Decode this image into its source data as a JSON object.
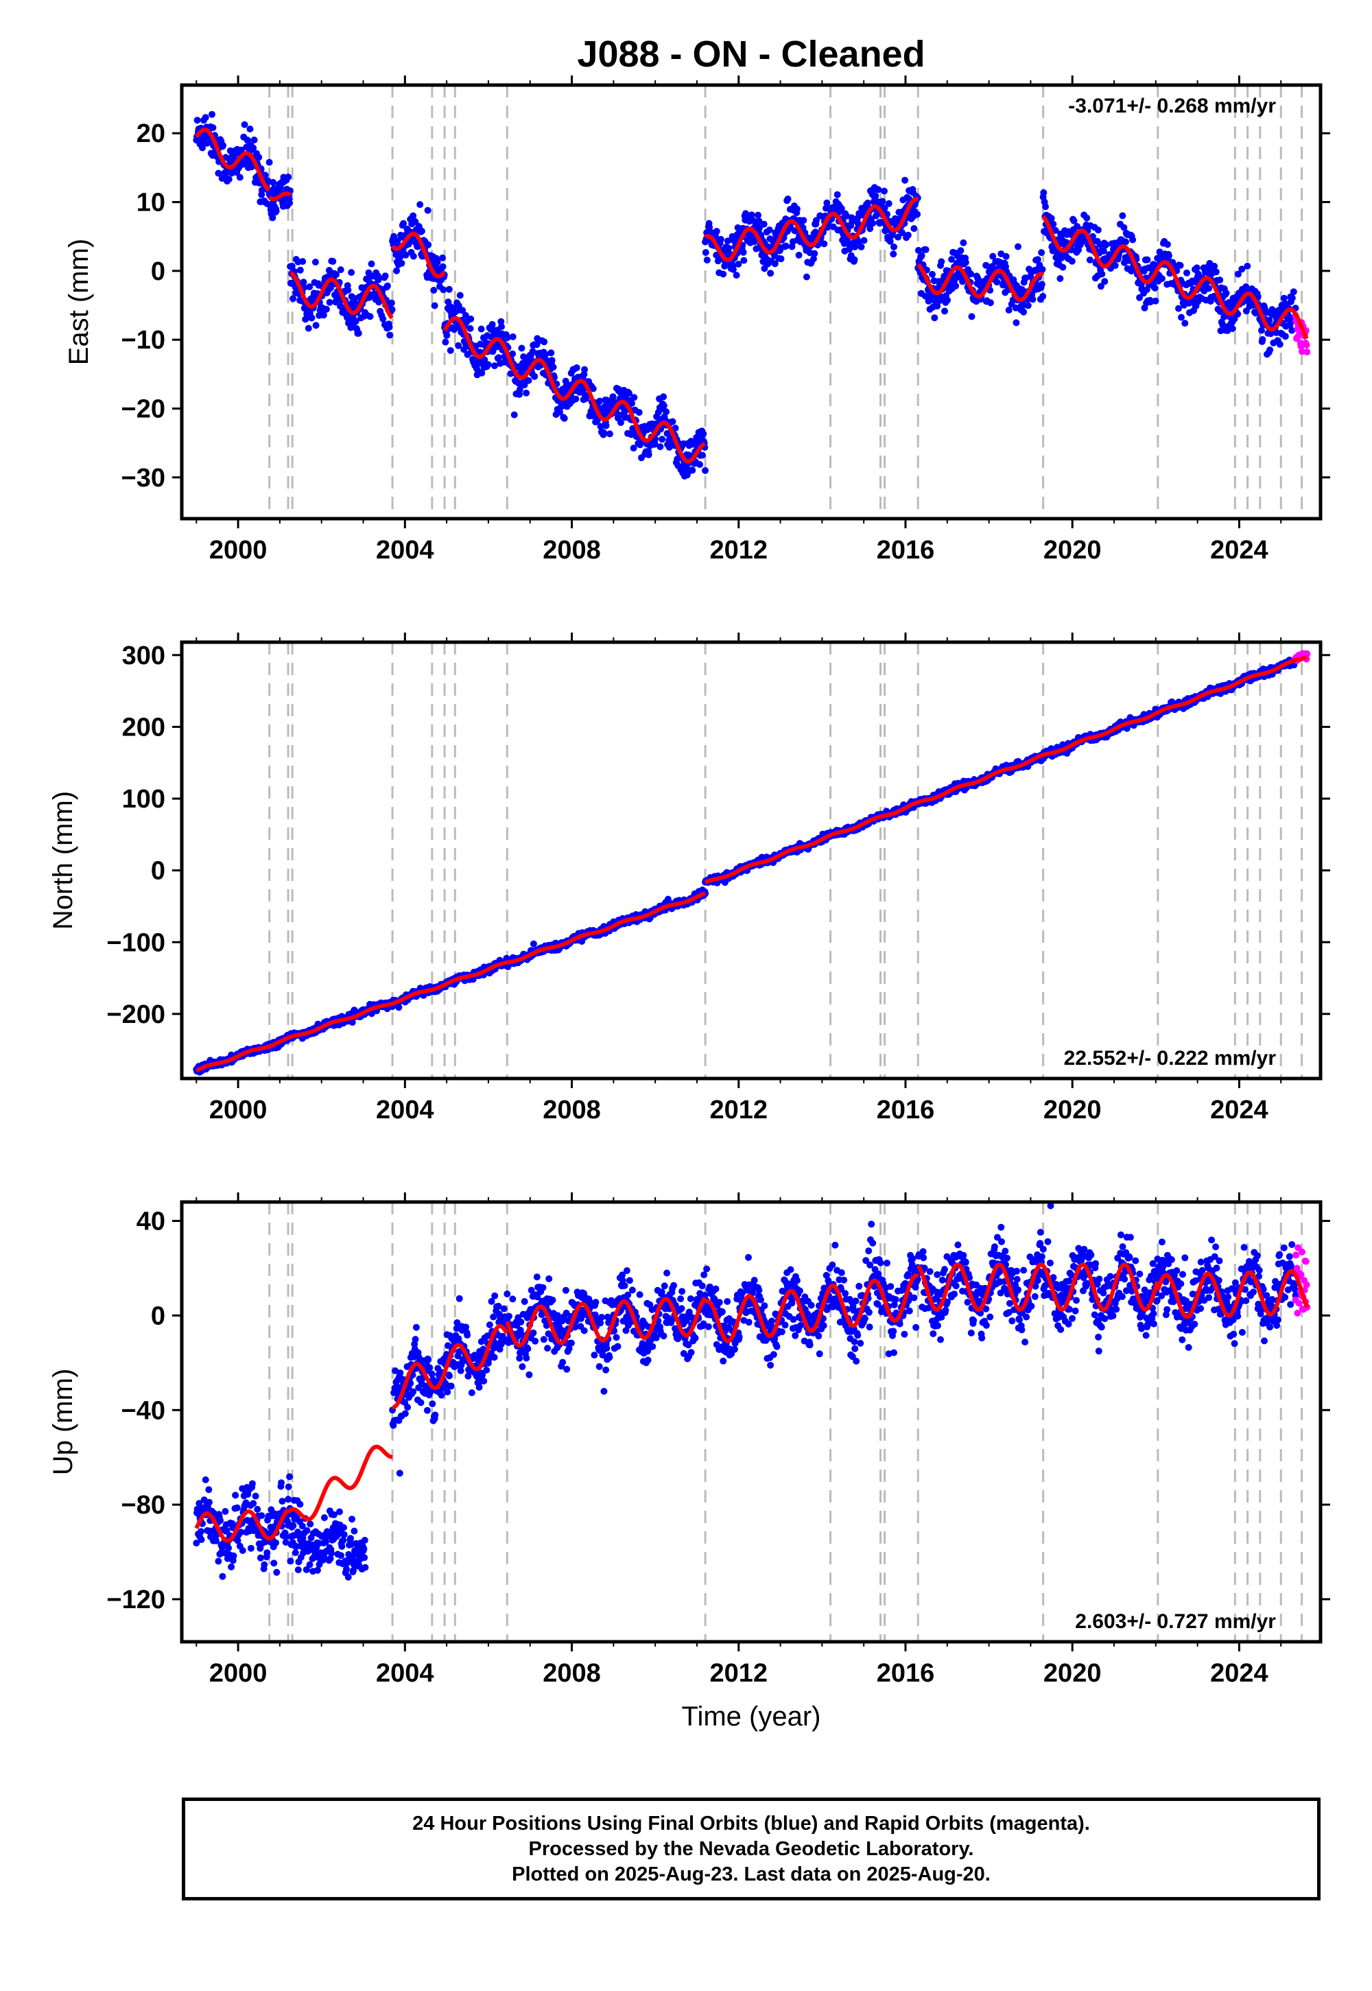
{
  "title": "J088  - ON - Cleaned",
  "footer": {
    "line1": "24 Hour Positions Using Final Orbits (blue) and Rapid Orbits (magenta).",
    "line2": "Processed by the Nevada Geodetic Laboratory.",
    "line3": "Plotted on 2025-Aug-23. Last data on 2025-Aug-20."
  },
  "colors": {
    "final_orbits": "#0000ff",
    "rapid_orbits": "#ff00ff",
    "model_fit": "#ff0000",
    "event_lines": "#bbbbbb",
    "frame": "#000000"
  },
  "chart_data": [
    {
      "type": "scatter",
      "panel": "east",
      "ylabel": "East (mm)",
      "xlim": [
        1998.65,
        2025.95
      ],
      "ylim": [
        -36,
        27
      ],
      "grid": false,
      "x_ticks": [
        2000,
        2004,
        2008,
        2012,
        2016,
        2020,
        2024
      ],
      "y_ticks": [
        -30,
        -20,
        -10,
        0,
        10,
        20
      ],
      "y_tick_labels": [
        "−30",
        "−20",
        "−10",
        "0",
        "10",
        "20"
      ],
      "rate_text": "-3.071+/- 0.268 mm/yr",
      "rate_position": "top-right",
      "event_lines": [
        2000.75,
        2001.2,
        2001.3,
        2003.7,
        2004.65,
        2004.95,
        2005.2,
        2006.45,
        2011.2,
        2014.2,
        2015.4,
        2015.5,
        2016.3,
        2019.3,
        2022.05,
        2023.9,
        2024.2,
        2024.5,
        2025.0,
        2025.5
      ],
      "series": [
        {
          "name": "Final Orbits",
          "color": "#0000ff",
          "x_range": [
            1999.0,
            2025.35
          ],
          "noise_mm": 1.6
        },
        {
          "name": "Rapid Orbits",
          "color": "#ff00ff",
          "x_range": [
            2025.35,
            2025.63
          ],
          "y_mean": -9,
          "noise_mm": 1.5
        },
        {
          "name": "Model fit",
          "color": "#ff0000",
          "segments": [
            {
              "x": [
                1999.0,
                2000.75
              ],
              "y": [
                19.5,
                13.5
              ],
              "amp": 1.8,
              "data_offset": 0
            },
            {
              "x": [
                2000.75,
                2001.25
              ],
              "y": [
                12.2,
                9.5
              ],
              "amp": 1.5,
              "data_offset": 0
            },
            {
              "x": [
                2001.25,
                2003.7
              ],
              "y": [
                -2.5,
                -4.8
              ],
              "amp": 2.2,
              "data_offset": 0
            },
            {
              "x": [
                2003.7,
                2004.95
              ],
              "y": [
                5.5,
                0.5
              ],
              "amp": 2.0,
              "data_offset": 0
            },
            {
              "x": [
                2004.95,
                2011.2
              ],
              "y": [
                -8.0,
                -27.0
              ],
              "amp": 2.0,
              "data_offset": 0
            },
            {
              "x": [
                2011.2,
                2016.3
              ],
              "y": [
                3.0,
                8.5
              ],
              "amp": 2.0,
              "data_offset": 0
            },
            {
              "x": [
                2016.3,
                2019.3
              ],
              "y": [
                -1.0,
                -2.5
              ],
              "amp": 2.0,
              "data_offset": 0
            },
            {
              "x": [
                2019.3,
                2025.63
              ],
              "y": [
                6.0,
                -8.5
              ],
              "amp": 2.0,
              "data_offset": 0
            }
          ]
        }
      ]
    },
    {
      "type": "scatter",
      "panel": "north",
      "ylabel": "North (mm)",
      "xlim": [
        1998.65,
        2025.95
      ],
      "ylim": [
        -290,
        318
      ],
      "grid": false,
      "x_ticks": [
        2000,
        2004,
        2008,
        2012,
        2016,
        2020,
        2024
      ],
      "y_ticks": [
        -200,
        -100,
        0,
        100,
        200,
        300
      ],
      "y_tick_labels": [
        "−200",
        "−100",
        "0",
        "100",
        "200",
        "300"
      ],
      "rate_text": "22.552+/- 0.222 mm/yr",
      "rate_position": "bottom-right",
      "event_lines": [
        2000.75,
        2001.2,
        2001.3,
        2003.7,
        2004.65,
        2004.95,
        2005.2,
        2006.45,
        2011.2,
        2014.2,
        2015.4,
        2015.5,
        2016.3,
        2019.3,
        2022.05,
        2023.9,
        2024.2,
        2024.5,
        2025.0,
        2025.5
      ],
      "series": [
        {
          "name": "Final Orbits",
          "color": "#0000ff",
          "x_range": [
            1999.0,
            2025.35
          ],
          "noise_mm": 2.5
        },
        {
          "name": "Rapid Orbits",
          "color": "#ff00ff",
          "x_range": [
            2025.35,
            2025.63
          ],
          "y_mean": 298,
          "noise_mm": 2.5
        },
        {
          "name": "Model fit",
          "color": "#ff0000",
          "segments": [
            {
              "x": [
                1999.0,
                2011.2
              ],
              "y": [
                -279,
                -33
              ],
              "amp": 1.5,
              "data_offset": 0
            },
            {
              "x": [
                2011.2,
                2025.63
              ],
              "y": [
                -18,
                298
              ],
              "amp": 1.5,
              "data_offset": 0
            }
          ]
        }
      ]
    },
    {
      "type": "scatter",
      "panel": "up",
      "ylabel": "Up (mm)",
      "xlabel": "Time (year)",
      "xlim": [
        1998.65,
        2025.95
      ],
      "ylim": [
        -138,
        48
      ],
      "grid": false,
      "x_ticks": [
        2000,
        2004,
        2008,
        2012,
        2016,
        2020,
        2024
      ],
      "y_ticks": [
        -120,
        -80,
        -40,
        0,
        40
      ],
      "y_tick_labels": [
        "−120",
        "−80",
        "−40",
        "0",
        "40"
      ],
      "rate_text": "2.603+/- 0.727 mm/yr",
      "rate_position": "bottom-right",
      "event_lines": [
        2000.75,
        2001.2,
        2001.3,
        2003.7,
        2004.65,
        2004.95,
        2005.2,
        2006.45,
        2011.2,
        2014.2,
        2015.4,
        2015.5,
        2016.3,
        2019.3,
        2022.05,
        2023.9,
        2024.2,
        2024.5,
        2025.0,
        2025.5
      ],
      "series": [
        {
          "name": "Final Orbits",
          "color": "#0000ff",
          "x_range": [
            1999.0,
            2025.35
          ],
          "noise_mm": 6.5
        },
        {
          "name": "Rapid Orbits",
          "color": "#ff00ff",
          "x_range": [
            2025.35,
            2025.63
          ],
          "y_mean": 14,
          "noise_mm": 7
        },
        {
          "name": "Model fit",
          "color": "#ff0000",
          "segments": [
            {
              "x": [
                1999.0,
                2001.2
              ],
              "y": [
                -90,
                -88
              ],
              "amp": 6.0,
              "data_offset": 0
            },
            {
              "x": [
                2001.2,
                2003.7
              ],
              "y": [
                -88,
                -55
              ],
              "amp": 5.0,
              "data_offset": 0,
              "data_end": 2003.05,
              "data_y": [
                -92,
                -100
              ]
            },
            {
              "x": [
                2003.7,
                2006.45
              ],
              "y": [
                -32,
                -10
              ],
              "amp": 7.0,
              "data_offset": 0
            },
            {
              "x": [
                2006.45,
                2011.2
              ],
              "y": [
                -5,
                0
              ],
              "amp": 8.0,
              "data_offset": 0
            },
            {
              "x": [
                2011.2,
                2016.3
              ],
              "y": [
                -3,
                8
              ],
              "amp": 9.0,
              "data_offset": 0
            },
            {
              "x": [
                2016.3,
                2022.05
              ],
              "y": [
                12,
                12
              ],
              "amp": 9.5,
              "data_offset": 0
            },
            {
              "x": [
                2022.05,
                2025.63
              ],
              "y": [
                8,
                10
              ],
              "amp": 9.0,
              "data_offset": 0
            }
          ]
        }
      ]
    }
  ]
}
